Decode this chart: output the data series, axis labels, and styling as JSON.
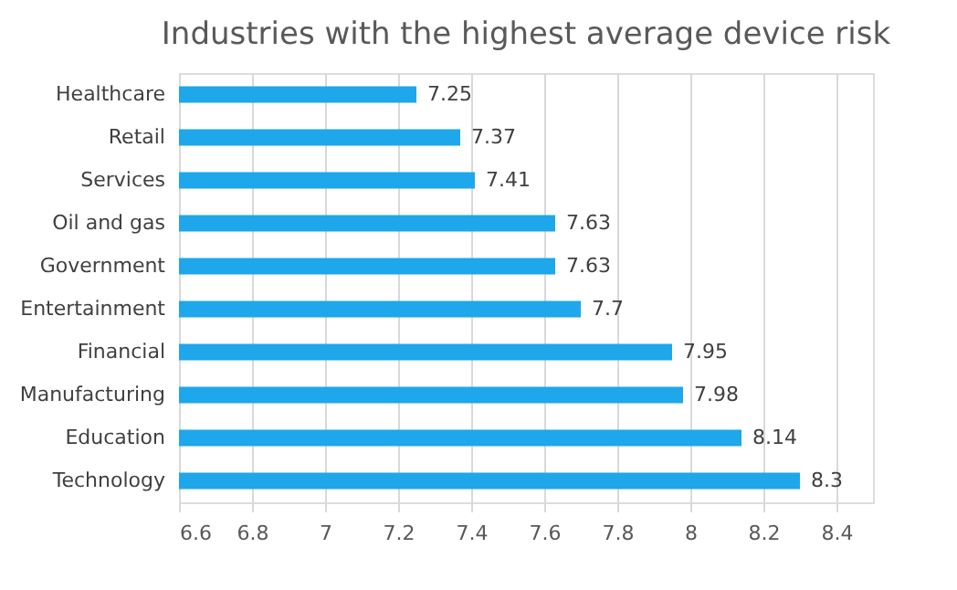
{
  "chart_data": {
    "type": "bar",
    "orientation": "horizontal",
    "title": "Industries with the highest average device risk",
    "categories": [
      "Healthcare",
      "Retail",
      "Services",
      "Oil and gas",
      "Government",
      "Entertainment",
      "Financial",
      "Manufacturing",
      "Education",
      "Technology"
    ],
    "values": [
      7.25,
      7.37,
      7.41,
      7.63,
      7.63,
      7.7,
      7.95,
      7.98,
      8.14,
      8.3
    ],
    "color": "#1ea7ea",
    "xlim": [
      6.6,
      8.5
    ],
    "xticks": [
      6.6,
      6.8,
      7,
      7.2,
      7.4,
      7.6,
      7.8,
      8,
      8.2,
      8.4
    ],
    "grid": "x",
    "data_labels": true
  }
}
